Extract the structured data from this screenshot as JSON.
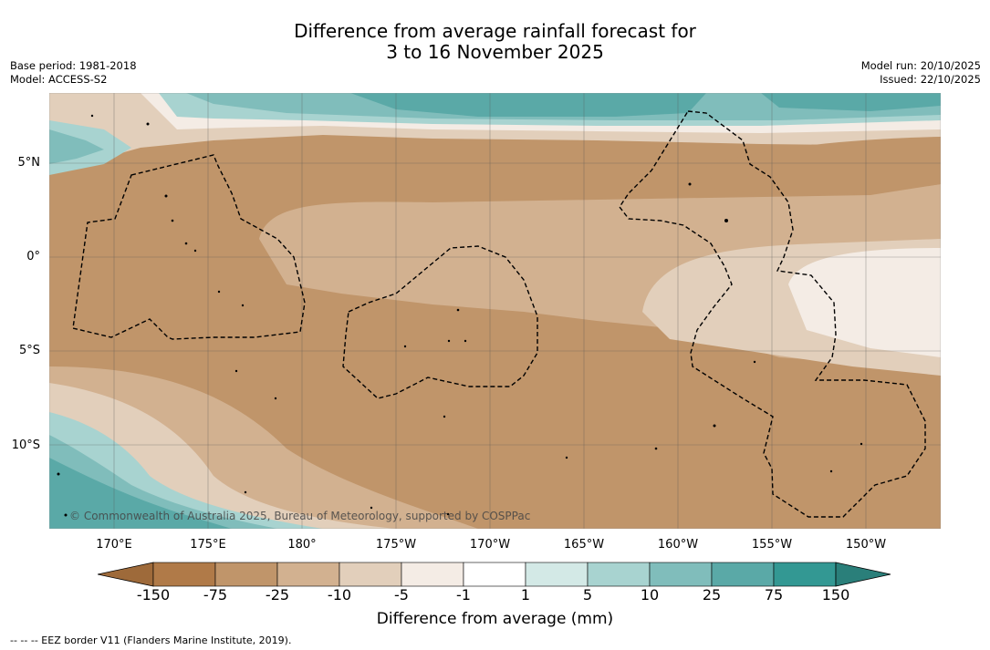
{
  "title": {
    "line1": "Difference from average rainfall forecast for",
    "line2": "3 to 16 November 2025"
  },
  "meta_left": {
    "base_period": "Base period: 1981-2018",
    "model": "Model: ACCESS-S2"
  },
  "meta_right": {
    "model_run": "Model run: 20/10/2025",
    "issued": "Issued: 22/10/2025"
  },
  "map": {
    "lon_ticks": [
      "170°E",
      "175°E",
      "180°",
      "175°W",
      "170°W",
      "165°W",
      "160°W",
      "155°W",
      "150°W"
    ],
    "lat_ticks": [
      "5°N",
      "0°",
      "5°S",
      "10°S"
    ],
    "copyright": "© Commonwealth of Australia 2025, Bureau of Meteorology, supported by COSPPac"
  },
  "colorbar": {
    "labels": [
      "-150",
      "-75",
      "-25",
      "-10",
      "-5",
      "-1",
      "1",
      "5",
      "10",
      "25",
      "75",
      "150"
    ],
    "colors": [
      "#9e6a3a",
      "#b07a48",
      "#c0956a",
      "#d2b190",
      "#e2cfbb",
      "#f4ece5",
      "#ffffff",
      "#d3e9e6",
      "#a8d3d0",
      "#80bdbb",
      "#5aa9a7",
      "#339893",
      "#2a7f7a"
    ],
    "title": "Difference from average (mm)"
  },
  "footer": "--  --  -- EEZ border V11 (Flanders Marine Institute, 2019)."
}
